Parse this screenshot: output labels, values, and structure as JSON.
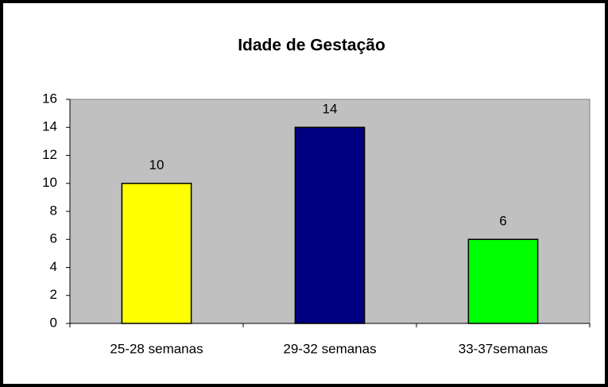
{
  "chart_data": {
    "type": "bar",
    "title": "Idade de Gestação",
    "categories": [
      "25-28 semanas",
      "29-32 semanas",
      "33-37semanas"
    ],
    "values": [
      10,
      14,
      6
    ],
    "colors": [
      "#ffff00",
      "#000080",
      "#00ff00"
    ],
    "ylim": [
      0,
      16
    ],
    "yticks": [
      0,
      2,
      4,
      6,
      8,
      10,
      12,
      14,
      16
    ],
    "plot_background": "#c0c0c0"
  }
}
